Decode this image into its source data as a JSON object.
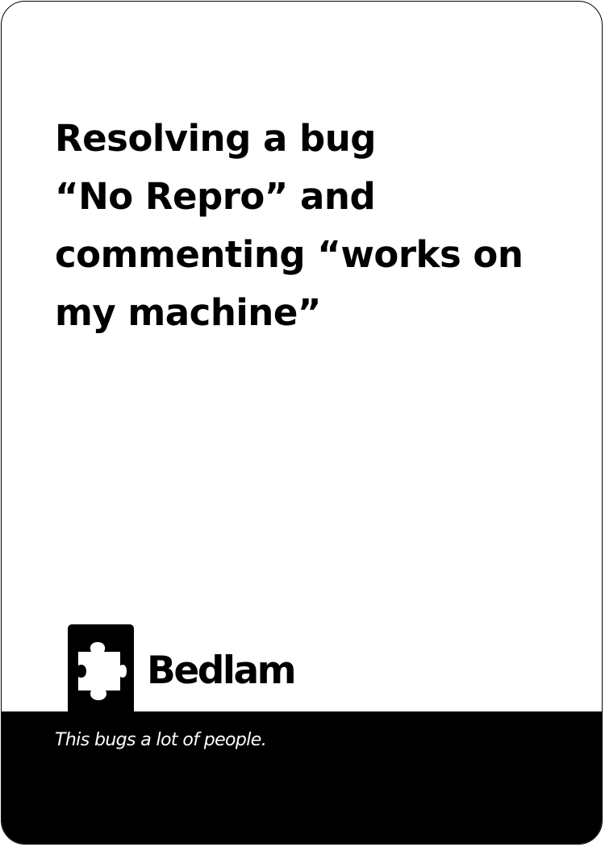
{
  "card": {
    "title_lines": [
      "Resolving a bug",
      "“No Repro” and",
      "commenting “works on",
      "my machine”"
    ],
    "brand": {
      "name": "Bedlam",
      "icon": "puzzle-piece-icon"
    },
    "tagline": "This bugs a lot of people."
  },
  "colors": {
    "background": "#ffffff",
    "ink": "#000000",
    "footer_text": "#ffffff"
  }
}
